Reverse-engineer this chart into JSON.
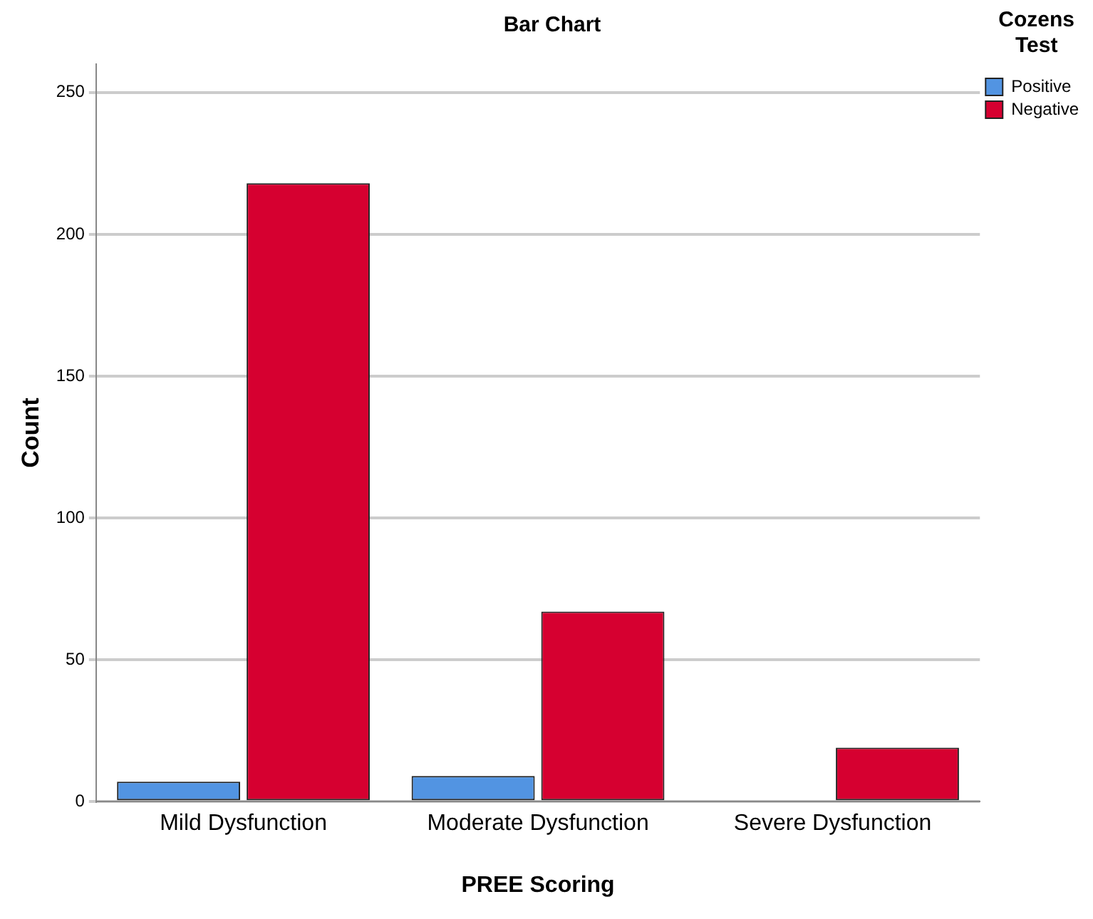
{
  "chart_data": {
    "type": "bar",
    "title": "Bar Chart",
    "xlabel": "PREE Scoring",
    "ylabel": "Count",
    "legend_title": "Cozens Test",
    "categories": [
      "Mild Dysfunction",
      "Moderate Dysfunction",
      "Severe Dysfunction"
    ],
    "series": [
      {
        "name": "Positive",
        "color": "#5294e2",
        "values": [
          7,
          9,
          null
        ]
      },
      {
        "name": "Negative",
        "color": "#d60030",
        "values": [
          218,
          67,
          19
        ]
      }
    ],
    "ylim": [
      0,
      260
    ],
    "yticks": [
      0,
      50,
      100,
      150,
      200,
      250
    ],
    "grid": "y",
    "legend": "top right"
  }
}
